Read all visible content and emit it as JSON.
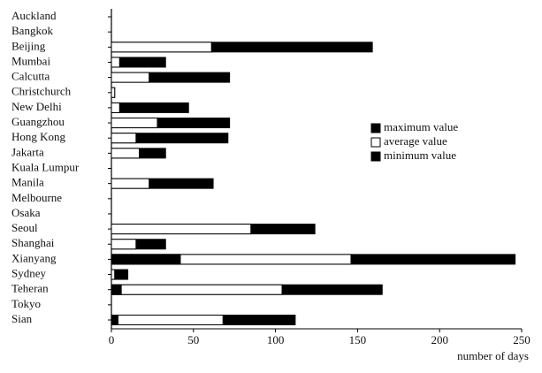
{
  "chart_data": {
    "type": "bar",
    "orientation": "horizontal",
    "overlaid": true,
    "x_label": "number of days",
    "categories": [
      "Auckland",
      "Bangkok",
      "Beijing",
      "Mumbai",
      "Calcutta",
      "Christchurch",
      "New Delhi",
      "Guangzhou",
      "Hong Kong",
      "Jakarta",
      "Kuala Lumpur",
      "Manila",
      "Melbourne",
      "Osaka",
      "Seoul",
      "Shanghai",
      "Xianyang",
      "Sydney",
      "Teheran",
      "Tokyo",
      "Sian"
    ],
    "series": [
      {
        "name": "maximum value",
        "color": "#000000",
        "values": [
          null,
          null,
          159,
          33,
          72,
          2,
          47,
          72,
          71,
          33,
          null,
          62,
          null,
          null,
          124,
          33,
          246,
          10,
          165,
          null,
          112
        ]
      },
      {
        "name": "average value",
        "color": "#ffffff",
        "values": [
          null,
          null,
          61,
          5,
          23,
          2,
          5,
          28,
          15,
          17,
          null,
          23,
          null,
          null,
          85,
          15,
          146,
          2,
          104,
          null,
          68
        ]
      },
      {
        "name": "minimum value",
        "color": "#000000",
        "values": [
          null,
          null,
          0,
          0,
          0,
          0,
          0,
          0,
          0,
          0,
          null,
          0,
          null,
          null,
          0,
          0,
          42,
          0,
          6,
          null,
          4
        ]
      }
    ],
    "xlim": [
      0,
      250
    ],
    "xticks": [
      0,
      50,
      100,
      150,
      200,
      250
    ],
    "legend": "right"
  }
}
